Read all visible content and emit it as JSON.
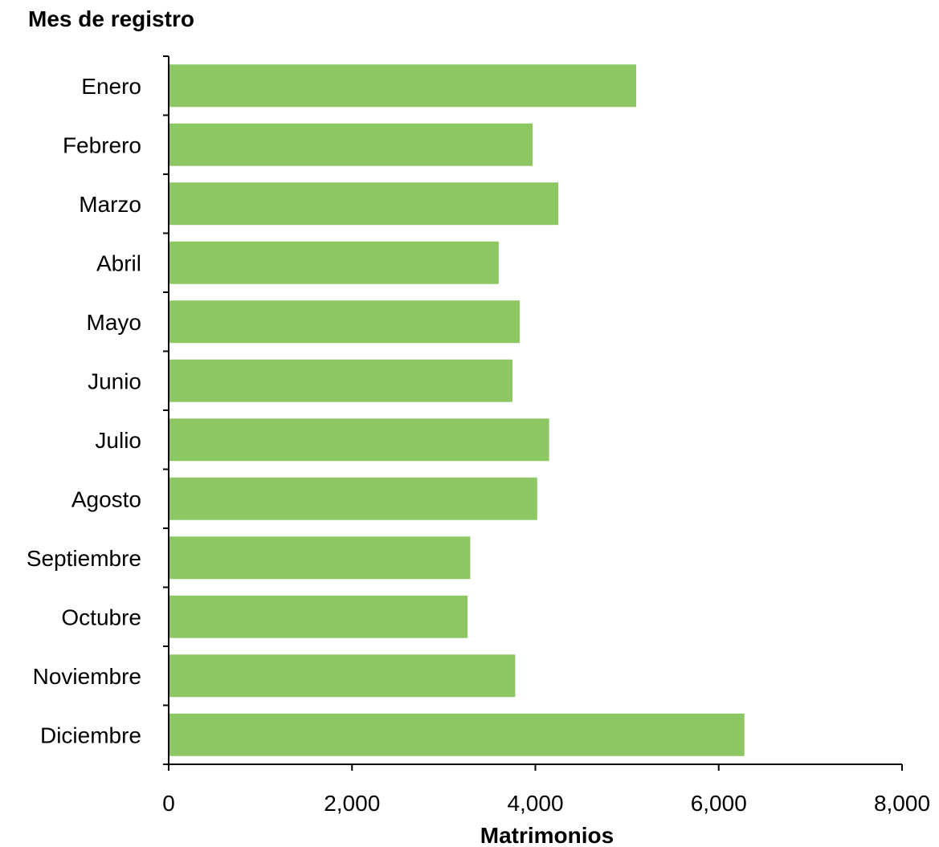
{
  "chart_data": {
    "type": "bar",
    "orientation": "horizontal",
    "categories": [
      "Enero",
      "Febrero",
      "Marzo",
      "Abril",
      "Mayo",
      "Junio",
      "Julio",
      "Agosto",
      "Septiembre",
      "Octubre",
      "Noviembre",
      "Diciembre"
    ],
    "values": [
      5100,
      3970,
      4250,
      3600,
      3830,
      3750,
      4150,
      4020,
      3290,
      3260,
      3780,
      6280
    ],
    "xlabel": "Matrimonios",
    "ylabel": "Mes de registro",
    "xlim": [
      0,
      8000
    ],
    "xticks": [
      0,
      2000,
      4000,
      6000,
      8000
    ],
    "xtick_labels": [
      "0",
      "2,000",
      "4,000",
      "6,000",
      "8,000"
    ],
    "grid": false,
    "bar_color": "#8cc764"
  }
}
